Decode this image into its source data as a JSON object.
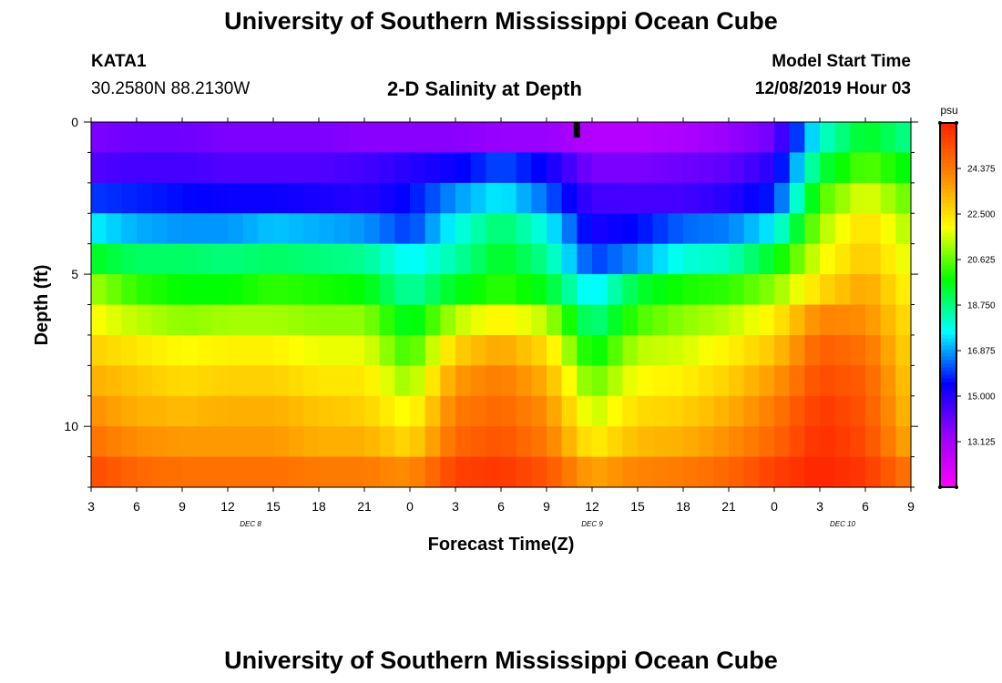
{
  "header": {
    "title": "University of Southern Mississippi Ocean Cube",
    "station_id": "KATA1",
    "coordinates": "30.2580N 88.2130W",
    "plot_title": "2-D Salinity at Depth",
    "model_start_label": "Model Start Time",
    "model_start_value": "12/08/2019 Hour 03",
    "footer_title": "University of Southern Mississippi Ocean Cube"
  },
  "chart_data": {
    "type": "heatmap",
    "title": "2-D Salinity at Depth",
    "xlabel": "Forecast Time(Z)",
    "ylabel": "Depth (ft)",
    "x_ticks": [
      "3",
      "6",
      "9",
      "12",
      "15",
      "18",
      "21",
      "0",
      "3",
      "6",
      "9",
      "12",
      "15",
      "18",
      "21",
      "0",
      "3",
      "6",
      "9"
    ],
    "x_range_hours": [
      0,
      54
    ],
    "y_range_ft": [
      0,
      12
    ],
    "y_ticks": [
      0,
      5,
      10
    ],
    "date_labels": [
      {
        "text": "DEC 8",
        "hour": 10.5
      },
      {
        "text": "DEC 9",
        "hour": 33
      },
      {
        "text": "DEC 10",
        "hour": 49.5
      }
    ],
    "colorbar": {
      "unit": "psu",
      "min": 11.25,
      "max": 26.25,
      "labels": [
        "24.375",
        "22.500",
        "20.625",
        "18.750",
        "16.875",
        "15.000",
        "13.125"
      ],
      "colors": [
        "#ff00ff",
        "#9900ff",
        "#0000ff",
        "#00ffff",
        "#00ff00",
        "#ffff00",
        "#ff8800",
        "#ff2200"
      ]
    },
    "current_time_marker_hour": 32,
    "depth_rows_ft": [
      0.5,
      1.5,
      2.5,
      3.5,
      4.5,
      5.5,
      6.5,
      7.5,
      8.5,
      9.5,
      10.5,
      11.5
    ],
    "hours": [
      0,
      3,
      6,
      9,
      12,
      15,
      18,
      21,
      24,
      27,
      30,
      33,
      36,
      39,
      42,
      45,
      48,
      51,
      54
    ],
    "salinity": [
      [
        13.8,
        14.0,
        14.0,
        13.8,
        13.8,
        13.8,
        13.6,
        13.6,
        13.6,
        13.4,
        13.4,
        12.8,
        12.8,
        13.0,
        13.4,
        14.0,
        18.0,
        19.6,
        18.6
      ],
      [
        14.4,
        14.6,
        14.6,
        14.4,
        14.4,
        14.4,
        14.6,
        15.0,
        15.4,
        16.2,
        15.4,
        13.8,
        13.8,
        14.0,
        14.2,
        15.0,
        19.2,
        20.6,
        19.6
      ],
      [
        16.0,
        15.8,
        15.6,
        15.4,
        15.4,
        15.2,
        15.0,
        15.6,
        16.8,
        17.6,
        16.4,
        14.6,
        14.6,
        14.6,
        15.0,
        15.8,
        20.4,
        21.8,
        20.6
      ],
      [
        17.6,
        17.0,
        16.8,
        16.8,
        17.2,
        17.0,
        16.8,
        16.0,
        17.8,
        19.0,
        17.8,
        15.2,
        15.6,
        16.4,
        16.6,
        17.6,
        21.2,
        22.6,
        21.2
      ],
      [
        19.6,
        19.0,
        19.0,
        18.8,
        19.0,
        18.8,
        18.6,
        17.6,
        18.4,
        19.6,
        18.6,
        16.0,
        16.8,
        18.0,
        18.2,
        19.6,
        21.8,
        23.0,
        21.6
      ],
      [
        21.2,
        20.2,
        19.8,
        19.8,
        20.2,
        20.0,
        19.8,
        18.4,
        19.6,
        20.2,
        19.6,
        17.4,
        19.4,
        20.0,
        20.2,
        21.0,
        22.6,
        23.6,
        22.0
      ],
      [
        22.0,
        21.4,
        21.0,
        21.2,
        21.2,
        21.0,
        21.0,
        19.4,
        21.4,
        22.2,
        21.4,
        18.6,
        20.4,
        21.0,
        21.4,
        22.2,
        24.2,
        24.0,
        22.4
      ],
      [
        22.8,
        22.4,
        22.0,
        22.2,
        22.2,
        21.8,
        21.8,
        20.2,
        22.8,
        23.6,
        22.6,
        19.6,
        21.4,
        21.6,
        22.2,
        23.0,
        25.0,
        24.6,
        22.6
      ],
      [
        23.4,
        23.0,
        22.6,
        22.8,
        22.8,
        22.4,
        22.4,
        21.0,
        23.8,
        24.4,
        23.4,
        20.6,
        22.0,
        22.2,
        22.8,
        23.8,
        25.4,
        25.0,
        22.8
      ],
      [
        24.0,
        23.4,
        23.2,
        23.4,
        23.4,
        23.0,
        22.8,
        21.8,
        24.4,
        24.8,
        24.0,
        21.4,
        22.6,
        22.8,
        23.4,
        24.4,
        25.8,
        25.2,
        23.0
      ],
      [
        24.6,
        24.0,
        23.8,
        23.8,
        23.8,
        23.4,
        23.4,
        22.6,
        24.8,
        25.2,
        24.4,
        22.2,
        23.2,
        23.4,
        24.0,
        24.8,
        26.0,
        25.4,
        23.4
      ],
      [
        25.4,
        24.8,
        24.6,
        24.6,
        24.6,
        24.4,
        24.4,
        24.0,
        25.6,
        25.8,
        25.2,
        23.6,
        24.2,
        24.4,
        24.8,
        25.6,
        26.2,
        25.8,
        24.4
      ]
    ]
  }
}
